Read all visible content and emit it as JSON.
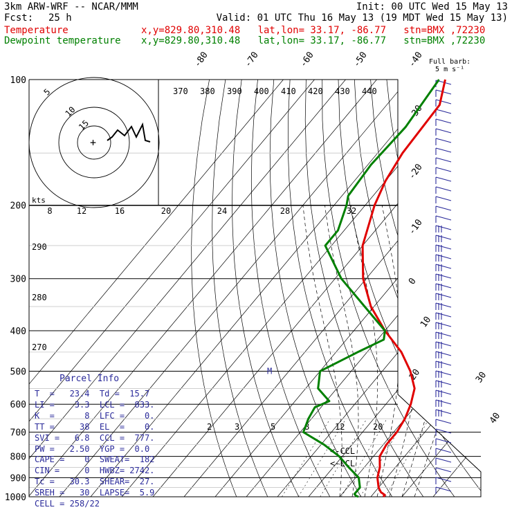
{
  "header": {
    "model": "3km ARW-WRF -- NCAR/MMM",
    "fcst_label": "Fcst:",
    "fcst_value": "25 h",
    "init": "Init: 00 UTC Wed 15 May 13",
    "valid": "Valid: 01 UTC Thu 16 May 13 (19 MDT Wed 15 May 13)",
    "temp_label": "Temperature",
    "dew_label": "Dewpoint temperature",
    "loc_line": "x,y=829.80,310.48   lat,lon= 33.17, -86.77   stn=BMX ,72230"
  },
  "colors": {
    "temperature": "#e00000",
    "dewpoint": "#008000",
    "wind": "#2a2a9a",
    "grid": "#000000"
  },
  "barb_legend": {
    "line1": "Full barb:",
    "line2": "5 m s⁻¹"
  },
  "hodograph": {
    "units_label": "kts",
    "ring_labels": [
      "5",
      "10",
      "15"
    ],
    "speed_ticks": [
      "8",
      "12",
      "16",
      "20",
      "24",
      "28",
      "32"
    ]
  },
  "chart_data": {
    "type": "skew-t",
    "pressure_levels": [
      100,
      200,
      300,
      400,
      500,
      600,
      700,
      800,
      900,
      1000
    ],
    "temp_isotherm_labels": [
      "-80",
      "-70",
      "-60",
      "-50",
      "-40",
      "-30",
      "-20",
      "-10",
      "0",
      "10",
      "20",
      "30",
      "40"
    ],
    "theta_labels": [
      "370",
      "380",
      "390",
      "400",
      "410",
      "420",
      "430",
      "440"
    ],
    "theta_left_labels": [
      "290",
      "280",
      "270"
    ],
    "mixing_ratio_labels": [
      "2",
      "3",
      "5",
      "8",
      "12",
      "20"
    ],
    "temperature": {
      "name": "Temperature",
      "p": [
        100,
        115,
        150,
        175,
        200,
        250,
        300,
        350,
        400,
        450,
        500,
        550,
        600,
        650,
        700,
        750,
        800,
        850,
        900,
        950,
        975,
        990,
        1000
      ],
      "t": [
        -68,
        -63,
        -62,
        -60,
        -57,
        -50,
        -41,
        -31,
        -20,
        -9,
        -1,
        5,
        8,
        10,
        11,
        11,
        12,
        15,
        17,
        20,
        22,
        24,
        24
      ]
    },
    "dewpoint": {
      "name": "Dewpoint temperature",
      "p": [
        100,
        130,
        160,
        190,
        200,
        230,
        250,
        300,
        350,
        400,
        420,
        450,
        500,
        550,
        590,
        610,
        650,
        700,
        750,
        800,
        850,
        900,
        950,
        985,
        995,
        1000
      ],
      "td": [
        -70,
        -68,
        -69,
        -68,
        -66,
        -62,
        -62,
        -48,
        -33,
        -20,
        -18,
        -23,
        -30,
        -26,
        -19,
        -22,
        -21,
        -19,
        -9,
        -1,
        5,
        11,
        14,
        14,
        15,
        16
      ]
    },
    "annotations": [
      {
        "text": "<-CCL",
        "p": 777
      },
      {
        "text": "<-LCL",
        "p": 833
      },
      {
        "text": "M",
        "p": 500
      }
    ]
  },
  "parcel": {
    "title": "Parcel Info",
    "lines": [
      "T  =   23.4  Td =  15.7",
      "LI =    3.3  LCL =  833.",
      "K  =      8  LFC =    0.",
      "TT =     38  EL  =    0.",
      "SVI =   6.8  CCL =  777.",
      "PW =   2.50  YGP =  0.0",
      "CAPE =    0  SWEAT=  182",
      "CIN =     0  HWBZ= 2742.",
      "Tc =   30.3  SHEAR=  27.",
      "SREH =   30  LAPSE=  5.9",
      "CELL = 258/22"
    ]
  }
}
